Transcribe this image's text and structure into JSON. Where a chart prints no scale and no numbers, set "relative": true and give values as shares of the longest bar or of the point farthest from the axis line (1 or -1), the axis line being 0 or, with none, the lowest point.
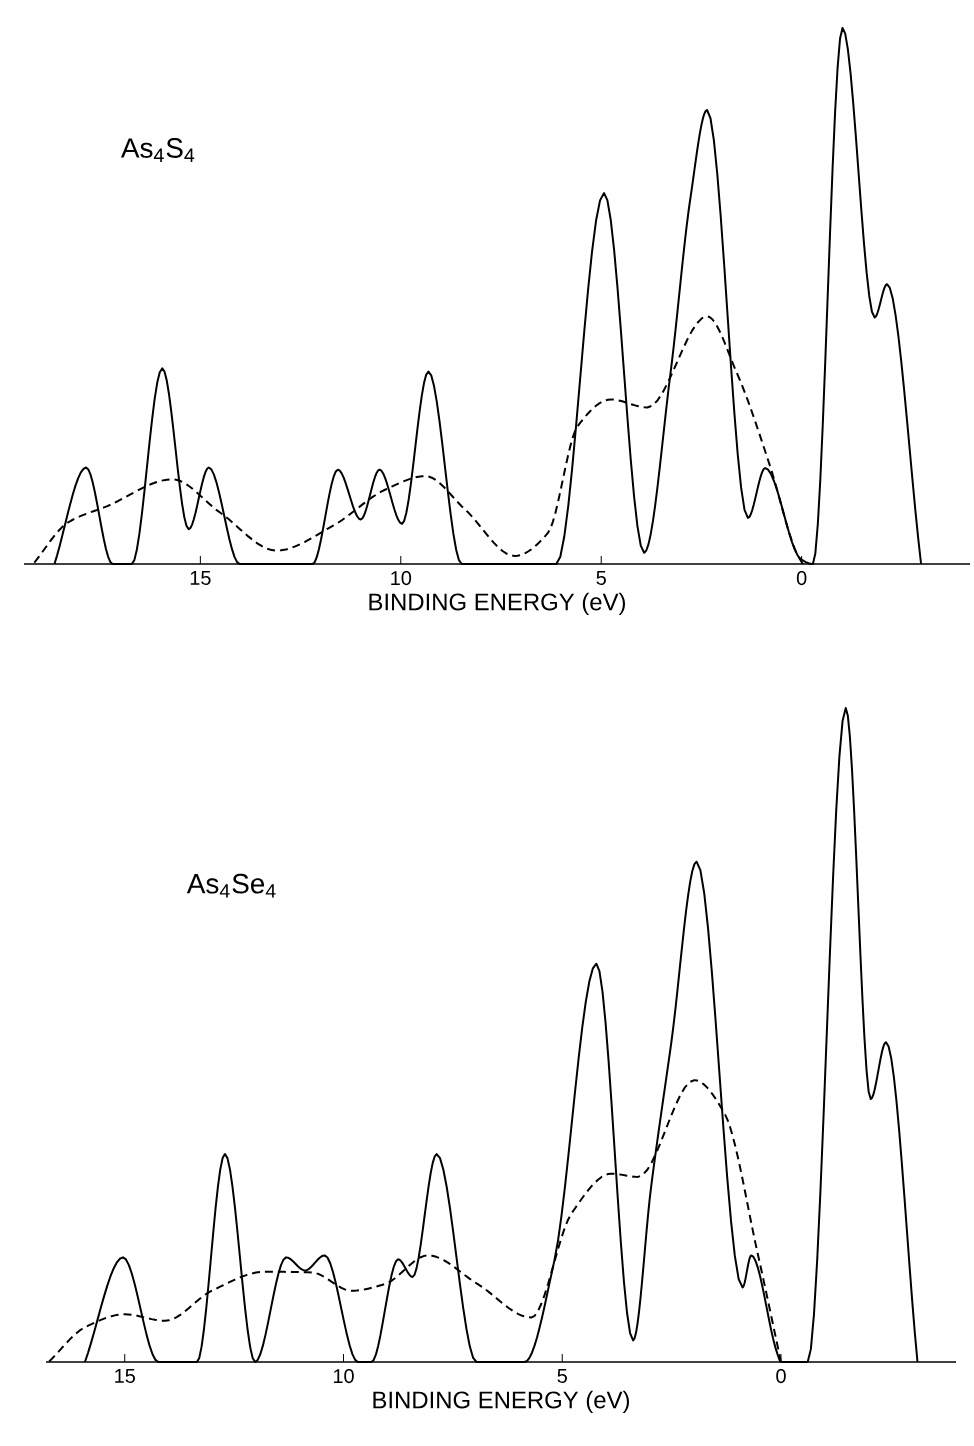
{
  "chart_data": [
    {
      "type": "line",
      "title": "As$_{4}$S$_{4}$",
      "xlabel": "BINDING ENERGY (eV)",
      "relative": true,
      "xlim": [
        19.4,
        -4.2
      ],
      "xticks": [
        15,
        10,
        5,
        0
      ],
      "marker": "none",
      "series": [
        {
          "color": "#000000",
          "line_style": "solid",
          "x": [
            18.64,
            17.85,
            17.19,
            16.71,
            15.95,
            15.29,
            14.79,
            14.02,
            12.2,
            11.57,
            11.0,
            10.53,
            9.97,
            9.31,
            8.48,
            6.12,
            4.93,
            3.93,
            3.27,
            2.78,
            2.36,
            1.34,
            0.91,
            0.02,
            -0.28,
            -1.02,
            -1.82,
            -2.13,
            -2.98
          ],
          "values": [
            0,
            0.18,
            0,
            0,
            0.365,
            0.065,
            0.18,
            0,
            0,
            0.176,
            0.083,
            0.176,
            0.075,
            0.359,
            0,
            0,
            0.692,
            0.021,
            0.357,
            0.68,
            0.847,
            0.086,
            0.179,
            0.009,
            0,
            1.0,
            0.46,
            0.522,
            0
          ]
        },
        {
          "color": "#000000",
          "line_style": "dashed",
          "x": [
            19.17,
            18.31,
            17.32,
            15.7,
            14.51,
            13.1,
            11.7,
            10.38,
            9.39,
            8.4,
            7.16,
            6.33,
            5.59,
            4.76,
            3.85,
            2.36,
            1.62,
            0.79,
            0.13,
            -0.03
          ],
          "values": [
            0,
            0.077,
            0.108,
            0.158,
            0.096,
            0.025,
            0.071,
            0.139,
            0.164,
            0.102,
            0.015,
            0.058,
            0.257,
            0.307,
            0.292,
            0.462,
            0.357,
            0.183,
            0.021,
            0
          ]
        }
      ]
    },
    {
      "type": "line",
      "title": "As$_{4}$Se$_{4}$",
      "xlabel": "BINDING ENERGY (eV)",
      "relative": true,
      "xlim": [
        16.8,
        -4.0
      ],
      "xticks": [
        15,
        10,
        5,
        0
      ],
      "marker": "none",
      "series": [
        {
          "color": "#000000",
          "line_style": "solid",
          "x": [
            15.91,
            15.04,
            14.23,
            13.35,
            12.71,
            12.02,
            11.31,
            10.88,
            10.43,
            9.67,
            9.36,
            8.75,
            8.42,
            7.87,
            6.96,
            5.86,
            5.18,
            4.22,
            3.38,
            2.97,
            2.51,
            1.93,
            0.88,
            0.68,
            0.08,
            0,
            -0.61,
            -1.48,
            -2.05,
            -2.4,
            -3.12
          ],
          "values": [
            0,
            0.16,
            0,
            0,
            0.318,
            0,
            0.16,
            0.14,
            0.163,
            0,
            0,
            0.157,
            0.13,
            0.318,
            0,
            0,
            0.155,
            0.609,
            0.033,
            0.267,
            0.487,
            0.765,
            0.114,
            0.163,
            0.012,
            0,
            0,
            1.0,
            0.402,
            0.489,
            0
          ]
        },
        {
          "color": "#000000",
          "line_style": "dashed",
          "x": [
            16.74,
            15.91,
            15.0,
            14.08,
            13.01,
            11.8,
            10.73,
            9.82,
            9.06,
            8.07,
            6.93,
            5.71,
            4.79,
            3.88,
            3.27,
            1.98,
            1.29,
            0.53,
            0
          ],
          "values": [
            0,
            0.053,
            0.073,
            0.063,
            0.109,
            0.138,
            0.137,
            0.109,
            0.119,
            0.163,
            0.119,
            0.068,
            0.227,
            0.288,
            0.283,
            0.431,
            0.38,
            0.165,
            0
          ]
        }
      ]
    }
  ]
}
